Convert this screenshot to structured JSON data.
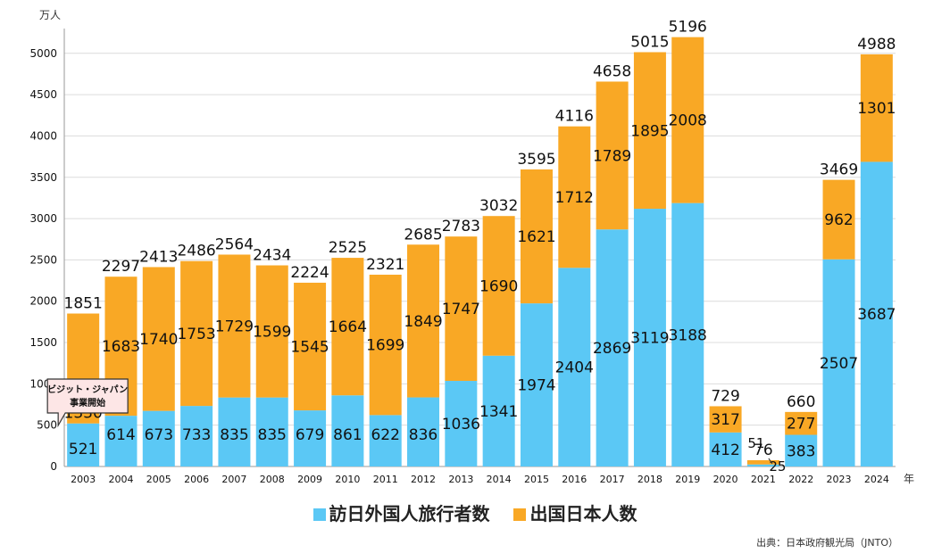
{
  "chart_data": {
    "type": "bar",
    "stacked": true,
    "y_unit": "万人",
    "x_unit": "年",
    "ylim": [
      0,
      5300
    ],
    "yticks": [
      0,
      500,
      1000,
      1500,
      2000,
      2500,
      3000,
      3500,
      4000,
      4500,
      5000
    ],
    "grid": true,
    "legend_position": "bottom",
    "categories": [
      "2003",
      "2004",
      "2005",
      "2006",
      "2007",
      "2008",
      "2009",
      "2010",
      "2011",
      "2012",
      "2013",
      "2014",
      "2015",
      "2016",
      "2017",
      "2018",
      "2019",
      "2020",
      "2021",
      "2022",
      "2023",
      "2024"
    ],
    "series": [
      {
        "name": "訪日外国人旅行者数",
        "color": "#5bc8f5",
        "values": [
          521,
          614,
          673,
          733,
          835,
          835,
          679,
          861,
          622,
          836,
          1036,
          1341,
          1974,
          2404,
          2869,
          3119,
          3188,
          412,
          25,
          383,
          2507,
          3687
        ]
      },
      {
        "name": "出国日本人数",
        "color": "#f9a825",
        "values": [
          1330,
          1683,
          1740,
          1753,
          1729,
          1599,
          1545,
          1664,
          1699,
          1849,
          1747,
          1690,
          1621,
          1712,
          1789,
          1895,
          2008,
          317,
          51,
          277,
          962,
          1301
        ]
      }
    ],
    "totals": [
      1851,
      2297,
      2413,
      2486,
      2564,
      2434,
      2224,
      2525,
      2321,
      2685,
      2783,
      3032,
      3595,
      4116,
      4658,
      5015,
      5196,
      729,
      76,
      660,
      3469,
      4988
    ],
    "annotation": "ビジット・ジャパン事業開始"
  },
  "source": "出典：日本政府観光局（JNTO）",
  "callout_lines": [
    "ビジット・ジャパン",
    "事業開始"
  ]
}
